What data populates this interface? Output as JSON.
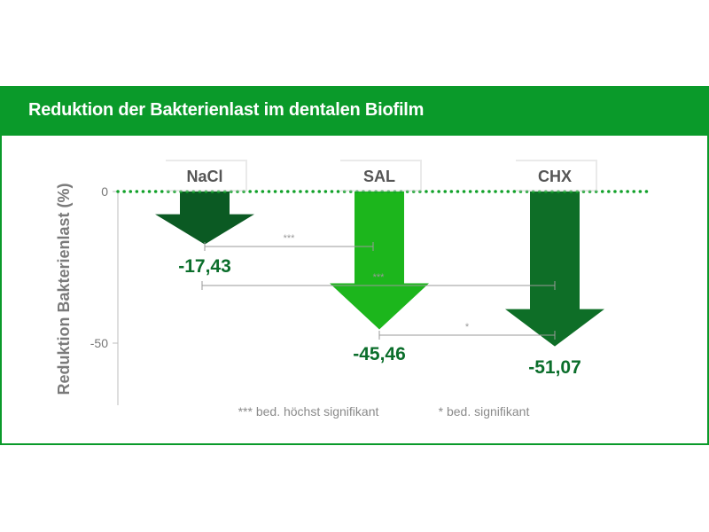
{
  "title": "Reduktion der Bakterienlast im dentalen Biofilm",
  "colors": {
    "frame": "#0a9a2a",
    "title_text": "#ffffff",
    "nacl_arrow": "#0b5a23",
    "sal_arrow": "#1cb61c",
    "chx_arrow": "#0e6e27",
    "value_text": "#0b6e2b",
    "axis_text": "#777777",
    "bracket": "#9a9a9a"
  },
  "chart_data": {
    "type": "bar",
    "orientation": "vertical-down-arrows",
    "title": "Reduktion der Bakterienlast im dentalen Biofilm",
    "ylabel": "Reduktion Bakterienlast (%)",
    "ylim": [
      -70,
      0
    ],
    "yticks": [
      0,
      -50
    ],
    "ytick_labels": [
      "0",
      "-50"
    ],
    "categories": [
      "NaCl",
      "SAL",
      "CHX"
    ],
    "values": [
      -17.43,
      -45.46,
      -51.07
    ],
    "value_labels": [
      "-17,43",
      "-45,46",
      "-51,07"
    ],
    "zero_line": "dotted",
    "significance": [
      {
        "from": "NaCl",
        "to": "SAL",
        "label": "***"
      },
      {
        "from": "NaCl",
        "to": "CHX",
        "label": "***"
      },
      {
        "from": "SAL",
        "to": "CHX",
        "label": "*"
      }
    ],
    "footnotes": [
      "*** bed. höchst signifikant",
      "* bed. signifikant"
    ]
  }
}
